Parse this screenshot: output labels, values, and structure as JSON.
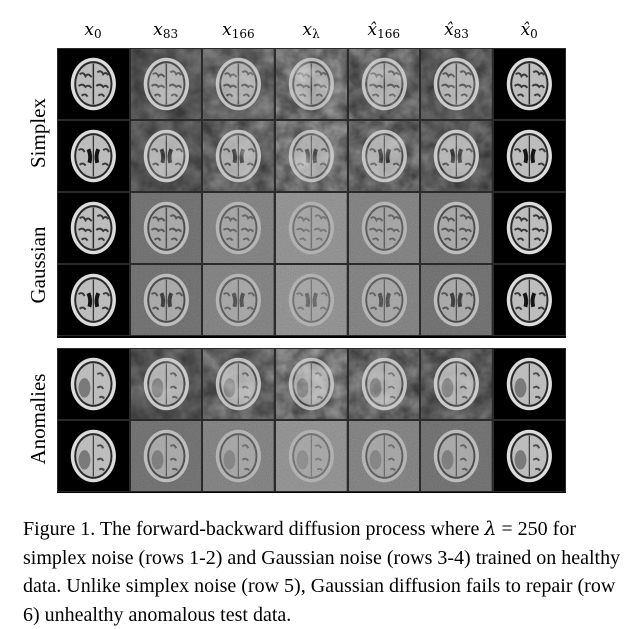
{
  "columns": [
    {
      "symbol": "x",
      "hat": false,
      "sub": "0"
    },
    {
      "symbol": "x",
      "hat": false,
      "sub": "83"
    },
    {
      "symbol": "x",
      "hat": false,
      "sub": "166"
    },
    {
      "symbol": "x",
      "hat": false,
      "sub": "λ"
    },
    {
      "symbol": "x̂",
      "hat": true,
      "sub": "166"
    },
    {
      "symbol": "x̂",
      "hat": true,
      "sub": "83"
    },
    {
      "symbol": "x̂",
      "hat": true,
      "sub": "0"
    }
  ],
  "row_groups": [
    {
      "label": "Simplex"
    },
    {
      "label": "Gaussian"
    },
    {
      "label": "Anomalies"
    }
  ],
  "rows": [
    {
      "group": "Simplex",
      "slice": "upper",
      "noise": [
        "none",
        "simplex",
        "simplex",
        "simplex",
        "simplex",
        "simplex",
        "none"
      ]
    },
    {
      "group": "Simplex",
      "slice": "mid",
      "noise": [
        "none",
        "simplex",
        "simplex",
        "simplex",
        "simplex",
        "simplex",
        "none"
      ]
    },
    {
      "group": "Gaussian",
      "slice": "upper",
      "noise": [
        "none",
        "gauss",
        "gauss",
        "gauss",
        "gauss",
        "gauss",
        "none"
      ]
    },
    {
      "group": "Gaussian",
      "slice": "mid",
      "noise": [
        "none",
        "gauss",
        "gauss",
        "gauss",
        "gauss",
        "gauss",
        "none"
      ]
    },
    {
      "group": "Anomalies",
      "slice": "tumor",
      "noise": [
        "none",
        "simplex",
        "simplex",
        "simplex",
        "simplex",
        "simplex",
        "none"
      ]
    },
    {
      "group": "Anomalies",
      "slice": "tumor",
      "noise": [
        "none",
        "gauss",
        "gauss",
        "gauss",
        "gauss",
        "gauss",
        "none"
      ]
    }
  ],
  "caption": {
    "prefix": "Figure 1. The forward-backward diffusion process where ",
    "lambda_symbol": "λ",
    "lambda_value": " = 250",
    "rest": " for simplex noise (rows 1-2) and Gaussian noise (rows 3-4) trained on healthy data. Unlike simplex noise (row 5), Gaussian diffusion fails to repair (row 6) unhealthy anomalous test data."
  }
}
